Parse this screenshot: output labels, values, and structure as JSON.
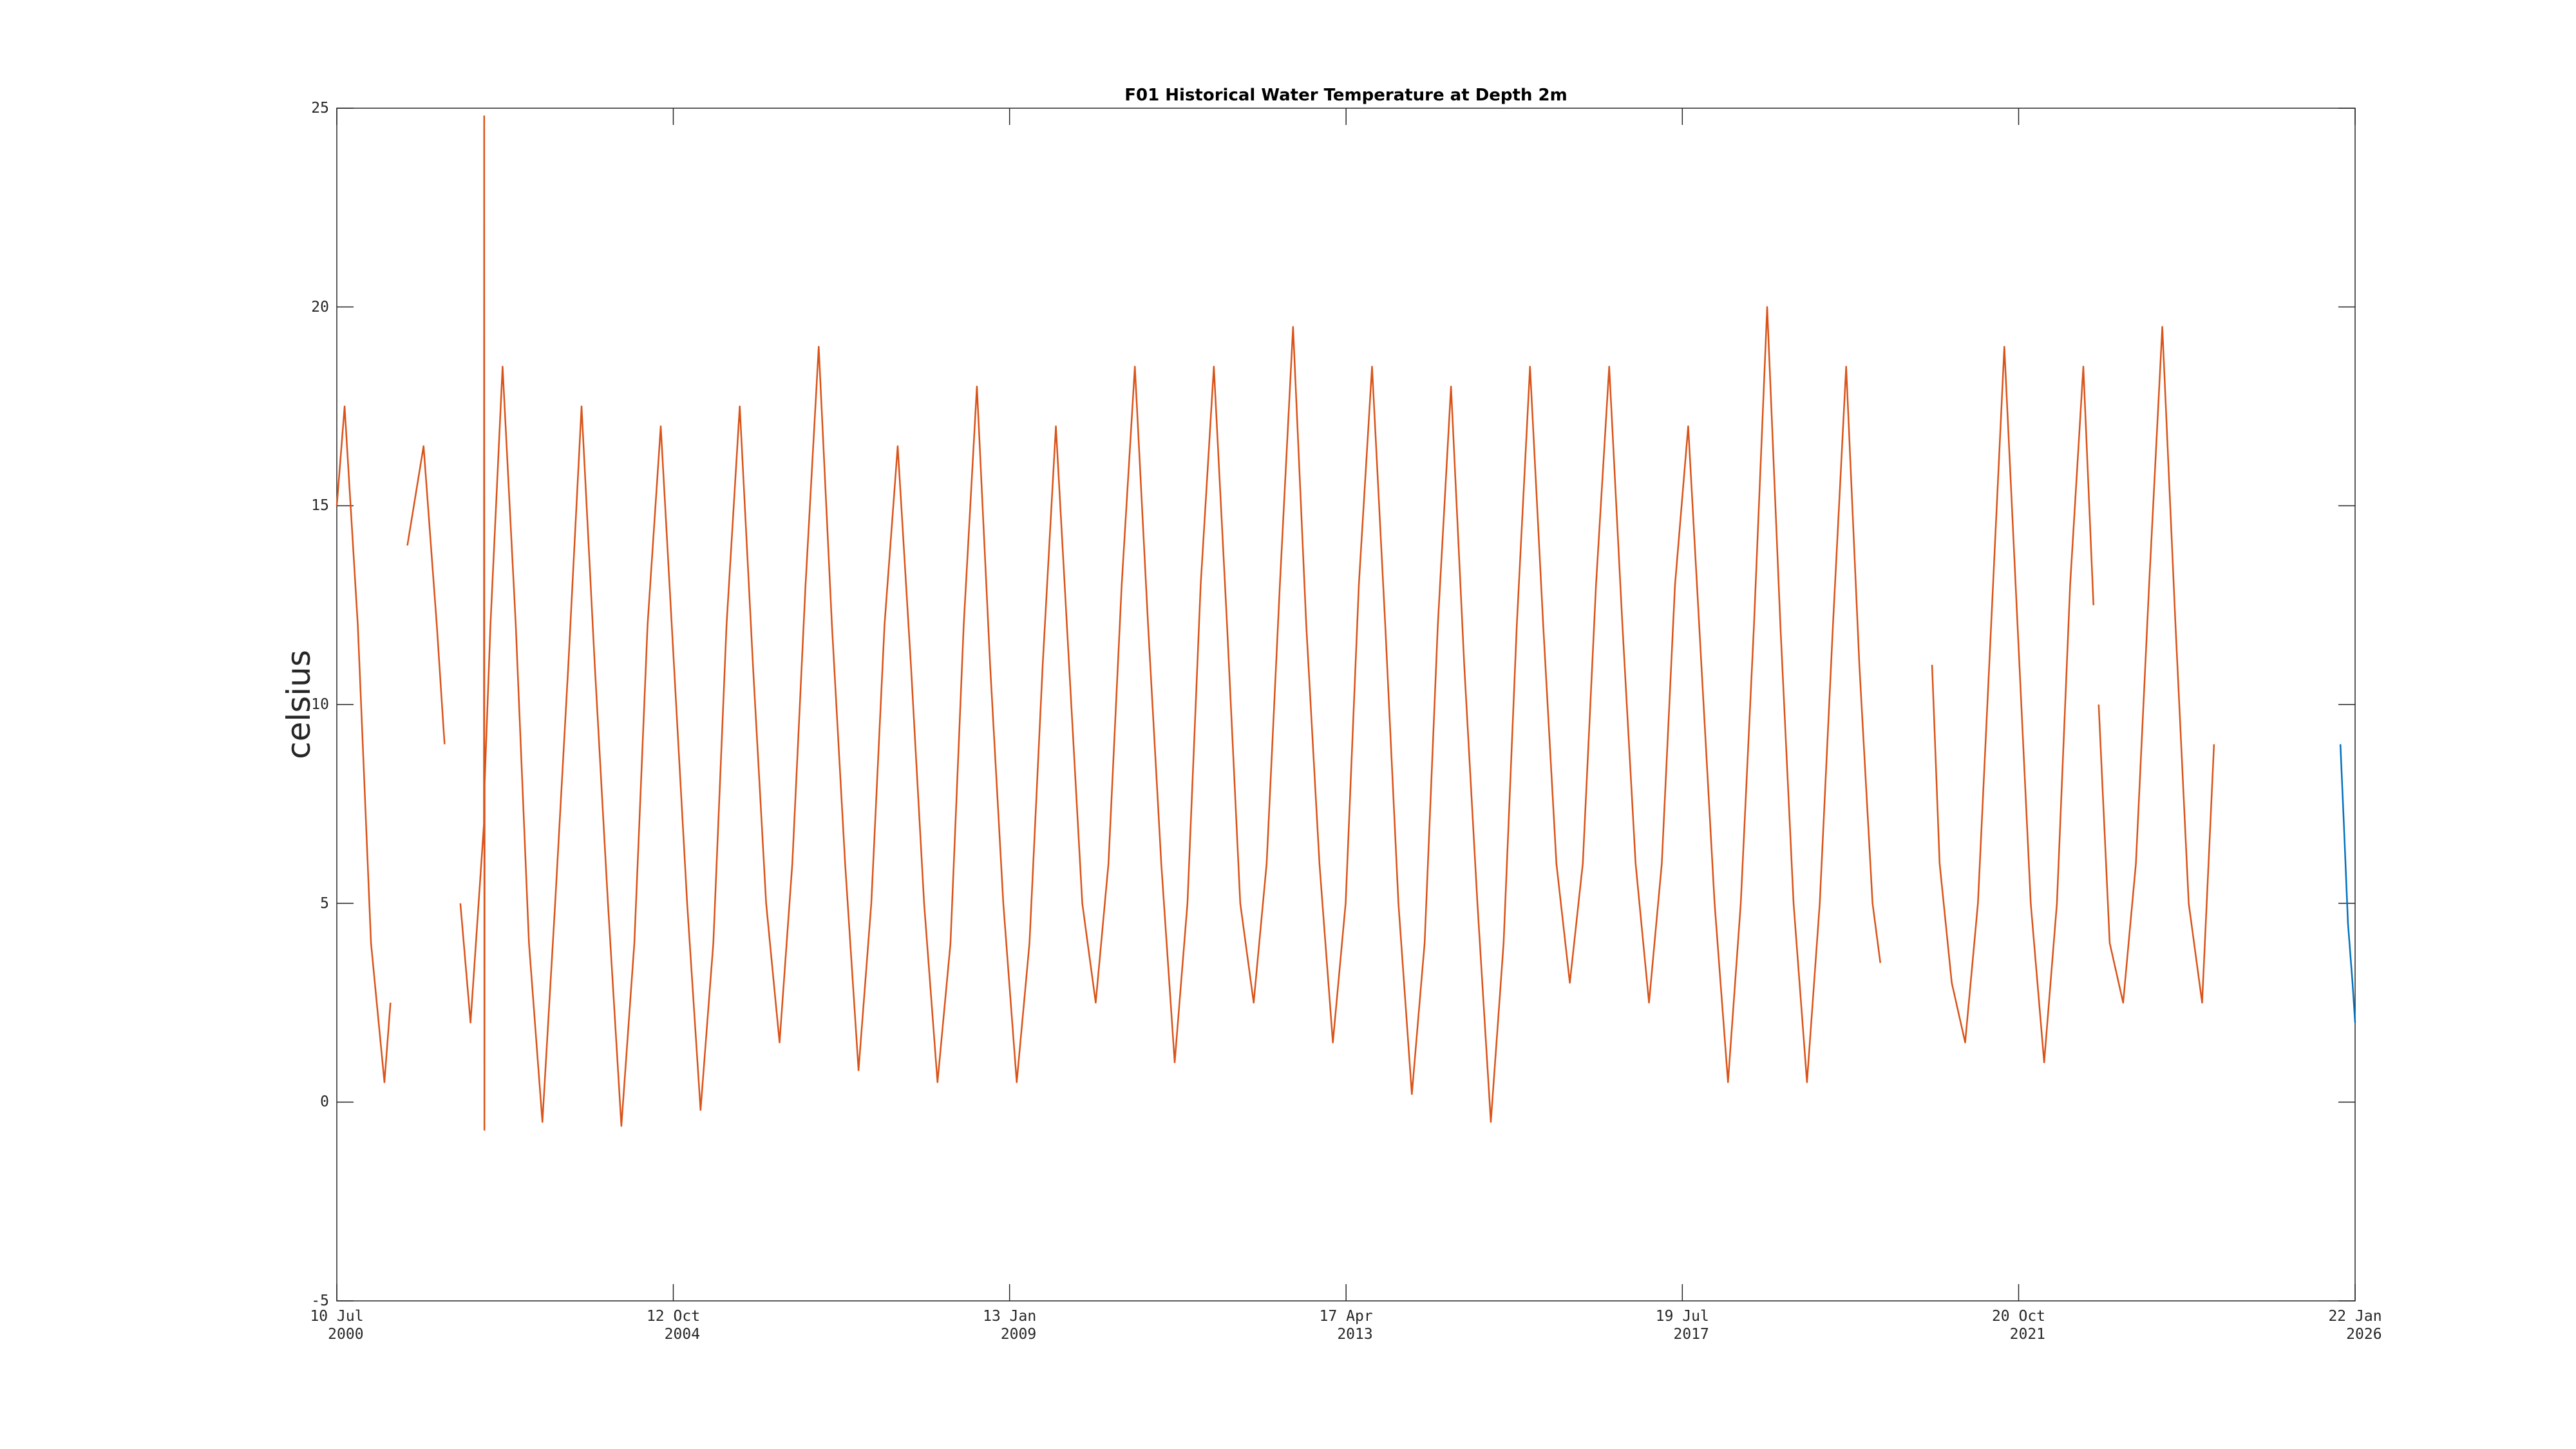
{
  "chart_data": {
    "type": "line",
    "title": "F01 Historical Water Temperature at Depth 2m",
    "y_label": "celsius",
    "xlim": [
      "2000-07-10",
      "2026-01-22"
    ],
    "xticks": [
      {
        "value": "2000-07-10",
        "label": "10 Jul\n2000"
      },
      {
        "value": "2004-10-12",
        "label": "12 Oct\n2004"
      },
      {
        "value": "2009-01-13",
        "label": "13 Jan\n2009"
      },
      {
        "value": "2013-04-17",
        "label": "17 Apr\n2013"
      },
      {
        "value": "2017-07-19",
        "label": "19 Jul\n2017"
      },
      {
        "value": "2021-10-20",
        "label": "20 Oct\n2021"
      },
      {
        "value": "2026-01-22",
        "label": "22 Jan\n2026"
      }
    ],
    "ylim": [
      -5,
      25
    ],
    "yticks": [
      -5,
      0,
      5,
      10,
      15,
      20,
      25
    ],
    "series": [
      {
        "color": "#D95319",
        "x": [
          "2000-07-10",
          "2000-08-15",
          "2000-10-15",
          "2000-12-15",
          "2001-02-15",
          "2001-03-15",
          "2001-04-15",
          "2001-06-01",
          "2001-08-15",
          "2001-10-15",
          "2001-11-20",
          "2001-12-20",
          "2002-02-01",
          "2002-03-20",
          "2002-05-21",
          "2002-05-22",
          "2002-05-23",
          "2002-05-24",
          "2002-06-20",
          "2002-08-15",
          "2002-10-15",
          "2002-12-15",
          "2003-02-15",
          "2003-04-15",
          "2003-06-15",
          "2003-08-15",
          "2003-10-15",
          "2003-12-15",
          "2004-02-15",
          "2004-04-15",
          "2004-06-15",
          "2004-08-15",
          "2004-10-15",
          "2004-12-15",
          "2005-02-15",
          "2005-04-15",
          "2005-06-15",
          "2005-08-15",
          "2005-10-15",
          "2005-12-15",
          "2006-02-15",
          "2006-04-15",
          "2006-06-15",
          "2006-08-15",
          "2006-10-15",
          "2006-12-15",
          "2007-02-15",
          "2007-04-15",
          "2007-06-15",
          "2007-08-15",
          "2007-10-15",
          "2007-12-15",
          "2008-02-15",
          "2008-04-15",
          "2008-06-15",
          "2008-08-15",
          "2008-10-15",
          "2008-12-15",
          "2009-02-15",
          "2009-04-15",
          "2009-06-15",
          "2009-08-15",
          "2009-10-15",
          "2009-12-15",
          "2010-02-15",
          "2010-04-15",
          "2010-06-15",
          "2010-08-15",
          "2010-10-15",
          "2010-12-15",
          "2011-02-15",
          "2011-04-15",
          "2011-06-15",
          "2011-08-15",
          "2011-10-15",
          "2011-12-15",
          "2012-02-15",
          "2012-04-15",
          "2012-06-15",
          "2012-08-15",
          "2012-10-15",
          "2012-12-15",
          "2013-02-15",
          "2013-04-15",
          "2013-06-15",
          "2013-08-15",
          "2013-10-15",
          "2013-12-15",
          "2014-02-15",
          "2014-04-15",
          "2014-06-15",
          "2014-08-15",
          "2014-10-15",
          "2014-12-15",
          "2015-02-15",
          "2015-04-15",
          "2015-06-15",
          "2015-08-15",
          "2015-10-15",
          "2015-12-15",
          "2016-02-15",
          "2016-04-15",
          "2016-06-15",
          "2016-08-15",
          "2016-10-15",
          "2016-12-15",
          "2017-02-15",
          "2017-04-15",
          "2017-06-15",
          "2017-08-15",
          "2017-10-15",
          "2017-12-15",
          "2018-02-15",
          "2018-04-15",
          "2018-06-15",
          "2018-08-15",
          "2018-10-15",
          "2018-12-15",
          "2019-02-15",
          "2019-04-15",
          "2019-06-15",
          "2019-08-15",
          "2019-10-15",
          "2019-12-15",
          "2020-01-20",
          "2020-05-01",
          "2020-09-15",
          "2020-10-20",
          "2020-12-15",
          "2021-02-15",
          "2021-04-15",
          "2021-06-15",
          "2021-08-15",
          "2021-10-15",
          "2021-12-15",
          "2022-02-15",
          "2022-04-15",
          "2022-06-15",
          "2022-08-15",
          "2022-10-01",
          "2022-10-15",
          "2022-10-25",
          "2022-12-15",
          "2023-02-15",
          "2023-04-15",
          "2023-06-15",
          "2023-08-15",
          "2023-10-15",
          "2023-12-15",
          "2024-02-15",
          "2024-04-10"
        ],
        "values": [
          15,
          17.5,
          12,
          4,
          0.5,
          2.5,
          null,
          14,
          16.5,
          12,
          9,
          null,
          5,
          2,
          7,
          24.8,
          -0.7,
          8,
          12,
          18.5,
          12,
          4,
          -0.5,
          5,
          11,
          17.5,
          11,
          5,
          -0.6,
          4,
          12,
          17,
          11,
          5,
          -0.2,
          4,
          12,
          17.5,
          11,
          5,
          1.5,
          6,
          13,
          19,
          12,
          6,
          0.8,
          5,
          12,
          16.5,
          11,
          5,
          0.5,
          4,
          12,
          18,
          11,
          5,
          0.5,
          4,
          11,
          17,
          11,
          5,
          2.5,
          6,
          13,
          18.5,
          12,
          6,
          1,
          5,
          13,
          18.5,
          12,
          5,
          2.5,
          6,
          13,
          19.5,
          12,
          6,
          1.5,
          5,
          13,
          18.5,
          12,
          5,
          0.2,
          4,
          12,
          18,
          11,
          5,
          -0.5,
          4,
          12,
          18.5,
          12,
          6,
          3,
          6,
          13,
          18.5,
          12,
          6,
          2.5,
          6,
          13,
          17,
          11,
          5,
          0.5,
          5,
          12,
          20,
          12,
          5,
          0.5,
          5,
          12,
          18.5,
          11,
          5,
          3.5,
          null,
          11,
          6,
          3,
          1.5,
          5,
          12,
          19,
          12,
          5,
          1,
          5,
          13,
          18.5,
          12.5,
          null,
          10,
          4,
          2.5,
          6,
          13,
          19.5,
          12,
          5,
          2.5,
          9
        ]
      },
      {
        "color": "#0072BD",
        "x": [
          "2025-11-15",
          "2025-12-01",
          "2025-12-20",
          "2026-01-10",
          "2026-01-22"
        ],
        "values": [
          9,
          7,
          4.5,
          3,
          2
        ]
      }
    ]
  }
}
